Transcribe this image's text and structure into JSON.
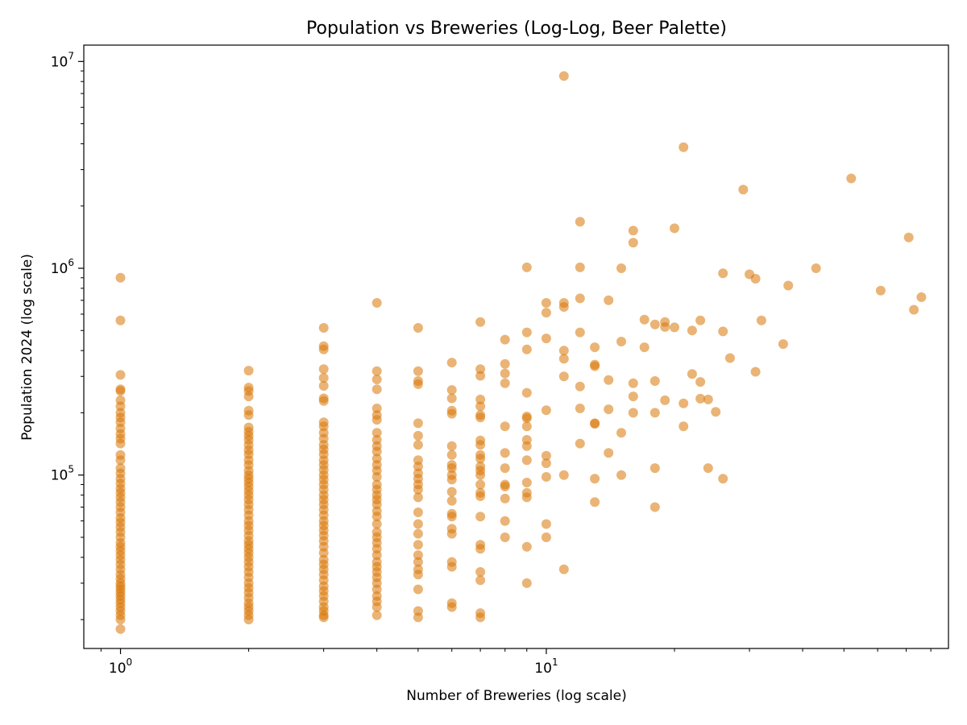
{
  "chart_data": {
    "type": "scatter",
    "title": "Population vs Breweries (Log-Log, Beer Palette)",
    "xlabel": "Number of Breweries (log scale)",
    "ylabel": "Population 2024 (log scale)",
    "x_scale": "log",
    "y_scale": "log",
    "xlim": [
      0.82,
      88
    ],
    "ylim": [
      14500,
      12000000
    ],
    "grid": false,
    "marker_color": "#D97706",
    "marker_alpha": 0.55,
    "x_ticks": [
      {
        "value": 1,
        "base": "10",
        "exp": "0"
      },
      {
        "value": 10,
        "base": "10",
        "exp": "1"
      }
    ],
    "y_ticks": [
      {
        "value": 100000,
        "base": "10",
        "exp": "5"
      },
      {
        "value": 1000000,
        "base": "10",
        "exp": "6"
      },
      {
        "value": 10000000,
        "base": "10",
        "exp": "7"
      }
    ],
    "points": [
      [
        1,
        900000
      ],
      [
        1,
        560000
      ],
      [
        1,
        305000
      ],
      [
        1,
        260000
      ],
      [
        1,
        255000
      ],
      [
        1,
        230000
      ],
      [
        1,
        215000
      ],
      [
        1,
        200000
      ],
      [
        1,
        190000
      ],
      [
        1,
        180000
      ],
      [
        1,
        168000
      ],
      [
        1,
        158000
      ],
      [
        1,
        150000
      ],
      [
        1,
        142000
      ],
      [
        1,
        125000
      ],
      [
        1,
        118000
      ],
      [
        1,
        108000
      ],
      [
        1,
        102000
      ],
      [
        1,
        96000
      ],
      [
        1,
        91000
      ],
      [
        1,
        86000
      ],
      [
        1,
        82000
      ],
      [
        1,
        78000
      ],
      [
        1,
        74000
      ],
      [
        1,
        70000
      ],
      [
        1,
        66000
      ],
      [
        1,
        62000
      ],
      [
        1,
        59000
      ],
      [
        1,
        56000
      ],
      [
        1,
        53000
      ],
      [
        1,
        50000
      ],
      [
        1,
        47000
      ],
      [
        1,
        45000
      ],
      [
        1,
        43000
      ],
      [
        1,
        41000
      ],
      [
        1,
        39000
      ],
      [
        1,
        37000
      ],
      [
        1,
        35000
      ],
      [
        1,
        33000
      ],
      [
        1,
        31500
      ],
      [
        1,
        30000
      ],
      [
        1,
        29000
      ],
      [
        1,
        28000
      ],
      [
        1,
        27000
      ],
      [
        1,
        26000
      ],
      [
        1,
        25000
      ],
      [
        1,
        24000
      ],
      [
        1,
        23000
      ],
      [
        1,
        22000
      ],
      [
        1,
        21000
      ],
      [
        1,
        20000
      ],
      [
        1,
        18000
      ],
      [
        2,
        320000
      ],
      [
        2,
        265000
      ],
      [
        2,
        255000
      ],
      [
        2,
        240000
      ],
      [
        2,
        205000
      ],
      [
        2,
        195000
      ],
      [
        2,
        170000
      ],
      [
        2,
        162000
      ],
      [
        2,
        155000
      ],
      [
        2,
        148000
      ],
      [
        2,
        140000
      ],
      [
        2,
        132000
      ],
      [
        2,
        126000
      ],
      [
        2,
        118000
      ],
      [
        2,
        112000
      ],
      [
        2,
        105000
      ],
      [
        2,
        100000
      ],
      [
        2,
        96000
      ],
      [
        2,
        92000
      ],
      [
        2,
        88000
      ],
      [
        2,
        84000
      ],
      [
        2,
        80000
      ],
      [
        2,
        76000
      ],
      [
        2,
        72000
      ],
      [
        2,
        68000
      ],
      [
        2,
        64000
      ],
      [
        2,
        60000
      ],
      [
        2,
        57000
      ],
      [
        2,
        54000
      ],
      [
        2,
        51000
      ],
      [
        2,
        48000
      ],
      [
        2,
        46000
      ],
      [
        2,
        44000
      ],
      [
        2,
        42000
      ],
      [
        2,
        40000
      ],
      [
        2,
        38000
      ],
      [
        2,
        36000
      ],
      [
        2,
        34000
      ],
      [
        2,
        32000
      ],
      [
        2,
        30000
      ],
      [
        2,
        28500
      ],
      [
        2,
        27000
      ],
      [
        2,
        25500
      ],
      [
        2,
        24000
      ],
      [
        2,
        23000
      ],
      [
        2,
        22000
      ],
      [
        2,
        21000
      ],
      [
        2,
        20000
      ],
      [
        3,
        515000
      ],
      [
        3,
        420000
      ],
      [
        3,
        405000
      ],
      [
        3,
        325000
      ],
      [
        3,
        295000
      ],
      [
        3,
        270000
      ],
      [
        3,
        235000
      ],
      [
        3,
        228000
      ],
      [
        3,
        180000
      ],
      [
        3,
        172000
      ],
      [
        3,
        160000
      ],
      [
        3,
        150000
      ],
      [
        3,
        140000
      ],
      [
        3,
        133000
      ],
      [
        3,
        126000
      ],
      [
        3,
        118000
      ],
      [
        3,
        112000
      ],
      [
        3,
        106000
      ],
      [
        3,
        100000
      ],
      [
        3,
        95000
      ],
      [
        3,
        90000
      ],
      [
        3,
        85000
      ],
      [
        3,
        80000
      ],
      [
        3,
        76000
      ],
      [
        3,
        72000
      ],
      [
        3,
        68000
      ],
      [
        3,
        64000
      ],
      [
        3,
        60000
      ],
      [
        3,
        57000
      ],
      [
        3,
        54000
      ],
      [
        3,
        51000
      ],
      [
        3,
        48000
      ],
      [
        3,
        45000
      ],
      [
        3,
        42000
      ],
      [
        3,
        39000
      ],
      [
        3,
        37000
      ],
      [
        3,
        35000
      ],
      [
        3,
        33000
      ],
      [
        3,
        31000
      ],
      [
        3,
        29000
      ],
      [
        3,
        27500
      ],
      [
        3,
        26000
      ],
      [
        3,
        24500
      ],
      [
        3,
        23000
      ],
      [
        3,
        22000
      ],
      [
        3,
        21000
      ],
      [
        3,
        20500
      ],
      [
        4,
        680000
      ],
      [
        4,
        318000
      ],
      [
        4,
        290000
      ],
      [
        4,
        260000
      ],
      [
        4,
        210000
      ],
      [
        4,
        195000
      ],
      [
        4,
        185000
      ],
      [
        4,
        160000
      ],
      [
        4,
        148000
      ],
      [
        4,
        138000
      ],
      [
        4,
        130000
      ],
      [
        4,
        120000
      ],
      [
        4,
        112000
      ],
      [
        4,
        105000
      ],
      [
        4,
        98000
      ],
      [
        4,
        90000
      ],
      [
        4,
        85000
      ],
      [
        4,
        80000
      ],
      [
        4,
        76000
      ],
      [
        4,
        72000
      ],
      [
        4,
        67000
      ],
      [
        4,
        63000
      ],
      [
        4,
        58000
      ],
      [
        4,
        53000
      ],
      [
        4,
        50000
      ],
      [
        4,
        47000
      ],
      [
        4,
        44000
      ],
      [
        4,
        41000
      ],
      [
        4,
        38000
      ],
      [
        4,
        36000
      ],
      [
        4,
        34000
      ],
      [
        4,
        32000
      ],
      [
        4,
        30000
      ],
      [
        4,
        28000
      ],
      [
        4,
        26000
      ],
      [
        4,
        24500
      ],
      [
        4,
        23000
      ],
      [
        4,
        21000
      ],
      [
        5,
        515000
      ],
      [
        5,
        318000
      ],
      [
        5,
        285000
      ],
      [
        5,
        275000
      ],
      [
        5,
        178000
      ],
      [
        5,
        155000
      ],
      [
        5,
        140000
      ],
      [
        5,
        118000
      ],
      [
        5,
        110000
      ],
      [
        5,
        102000
      ],
      [
        5,
        96000
      ],
      [
        5,
        90000
      ],
      [
        5,
        85000
      ],
      [
        5,
        78000
      ],
      [
        5,
        66000
      ],
      [
        5,
        58000
      ],
      [
        5,
        52000
      ],
      [
        5,
        46000
      ],
      [
        5,
        41000
      ],
      [
        5,
        38000
      ],
      [
        5,
        35000
      ],
      [
        5,
        33000
      ],
      [
        5,
        28000
      ],
      [
        5,
        22000
      ],
      [
        5,
        20500
      ],
      [
        6,
        350000
      ],
      [
        6,
        258000
      ],
      [
        6,
        235000
      ],
      [
        6,
        205000
      ],
      [
        6,
        198000
      ],
      [
        6,
        138000
      ],
      [
        6,
        125000
      ],
      [
        6,
        112000
      ],
      [
        6,
        108000
      ],
      [
        6,
        100000
      ],
      [
        6,
        95000
      ],
      [
        6,
        83000
      ],
      [
        6,
        75000
      ],
      [
        6,
        65000
      ],
      [
        6,
        63000
      ],
      [
        6,
        55000
      ],
      [
        6,
        52000
      ],
      [
        6,
        38000
      ],
      [
        6,
        36000
      ],
      [
        6,
        24000
      ],
      [
        6,
        23000
      ],
      [
        7,
        550000
      ],
      [
        7,
        325000
      ],
      [
        7,
        302000
      ],
      [
        7,
        232000
      ],
      [
        7,
        215000
      ],
      [
        7,
        195000
      ],
      [
        7,
        190000
      ],
      [
        7,
        147000
      ],
      [
        7,
        140000
      ],
      [
        7,
        125000
      ],
      [
        7,
        120000
      ],
      [
        7,
        110000
      ],
      [
        7,
        105000
      ],
      [
        7,
        100000
      ],
      [
        7,
        90000
      ],
      [
        7,
        82000
      ],
      [
        7,
        79000
      ],
      [
        7,
        63000
      ],
      [
        7,
        46000
      ],
      [
        7,
        44000
      ],
      [
        7,
        34000
      ],
      [
        7,
        31000
      ],
      [
        7,
        21500
      ],
      [
        7,
        20500
      ],
      [
        8,
        452000
      ],
      [
        8,
        345000
      ],
      [
        8,
        310000
      ],
      [
        8,
        278000
      ],
      [
        8,
        172000
      ],
      [
        8,
        128000
      ],
      [
        8,
        108000
      ],
      [
        8,
        90000
      ],
      [
        8,
        88000
      ],
      [
        8,
        77000
      ],
      [
        8,
        60000
      ],
      [
        8,
        50000
      ],
      [
        9,
        1010000
      ],
      [
        9,
        490000
      ],
      [
        9,
        405000
      ],
      [
        9,
        250000
      ],
      [
        9,
        192000
      ],
      [
        9,
        188000
      ],
      [
        9,
        172000
      ],
      [
        9,
        148000
      ],
      [
        9,
        138000
      ],
      [
        9,
        118000
      ],
      [
        9,
        92000
      ],
      [
        9,
        82000
      ],
      [
        9,
        78000
      ],
      [
        9,
        45000
      ],
      [
        9,
        30000
      ],
      [
        10,
        680000
      ],
      [
        10,
        610000
      ],
      [
        10,
        458000
      ],
      [
        10,
        206000
      ],
      [
        10,
        124000
      ],
      [
        10,
        114000
      ],
      [
        10,
        98000
      ],
      [
        10,
        58000
      ],
      [
        10,
        50000
      ],
      [
        11,
        8500000
      ],
      [
        11,
        680000
      ],
      [
        11,
        650000
      ],
      [
        11,
        400000
      ],
      [
        11,
        365000
      ],
      [
        11,
        300000
      ],
      [
        11,
        100000
      ],
      [
        11,
        35000
      ],
      [
        12,
        1680000
      ],
      [
        12,
        1010000
      ],
      [
        12,
        715000
      ],
      [
        12,
        490000
      ],
      [
        12,
        268000
      ],
      [
        12,
        210000
      ],
      [
        12,
        142000
      ],
      [
        13,
        415000
      ],
      [
        13,
        342000
      ],
      [
        13,
        336000
      ],
      [
        13,
        178000
      ],
      [
        13,
        177000
      ],
      [
        13,
        96000
      ],
      [
        13,
        74000
      ],
      [
        14,
        700000
      ],
      [
        14,
        288000
      ],
      [
        14,
        208000
      ],
      [
        14,
        128000
      ],
      [
        15,
        1000000
      ],
      [
        15,
        442000
      ],
      [
        15,
        160000
      ],
      [
        15,
        100000
      ],
      [
        16,
        1520000
      ],
      [
        16,
        1330000
      ],
      [
        16,
        278000
      ],
      [
        16,
        240000
      ],
      [
        16,
        200000
      ],
      [
        17,
        565000
      ],
      [
        17,
        415000
      ],
      [
        18,
        535000
      ],
      [
        18,
        285000
      ],
      [
        18,
        200000
      ],
      [
        18,
        108000
      ],
      [
        18,
        70000
      ],
      [
        19,
        550000
      ],
      [
        19,
        520000
      ],
      [
        19,
        230000
      ],
      [
        20,
        1560000
      ],
      [
        20,
        518000
      ],
      [
        21,
        3850000
      ],
      [
        21,
        172000
      ],
      [
        21,
        222000
      ],
      [
        22,
        500000
      ],
      [
        22,
        308000
      ],
      [
        23,
        560000
      ],
      [
        23,
        282000
      ],
      [
        23,
        234000
      ],
      [
        24,
        232000
      ],
      [
        24,
        108000
      ],
      [
        25,
        202000
      ],
      [
        26,
        945000
      ],
      [
        26,
        495000
      ],
      [
        26,
        96000
      ],
      [
        27,
        368000
      ],
      [
        29,
        2400000
      ],
      [
        30,
        935000
      ],
      [
        31,
        890000
      ],
      [
        31,
        316000
      ],
      [
        32,
        560000
      ],
      [
        36,
        430000
      ],
      [
        37,
        825000
      ],
      [
        43,
        1000000
      ],
      [
        52,
        2720000
      ],
      [
        61,
        780000
      ],
      [
        71,
        1410000
      ],
      [
        73,
        630000
      ],
      [
        76,
        725000
      ]
    ]
  }
}
